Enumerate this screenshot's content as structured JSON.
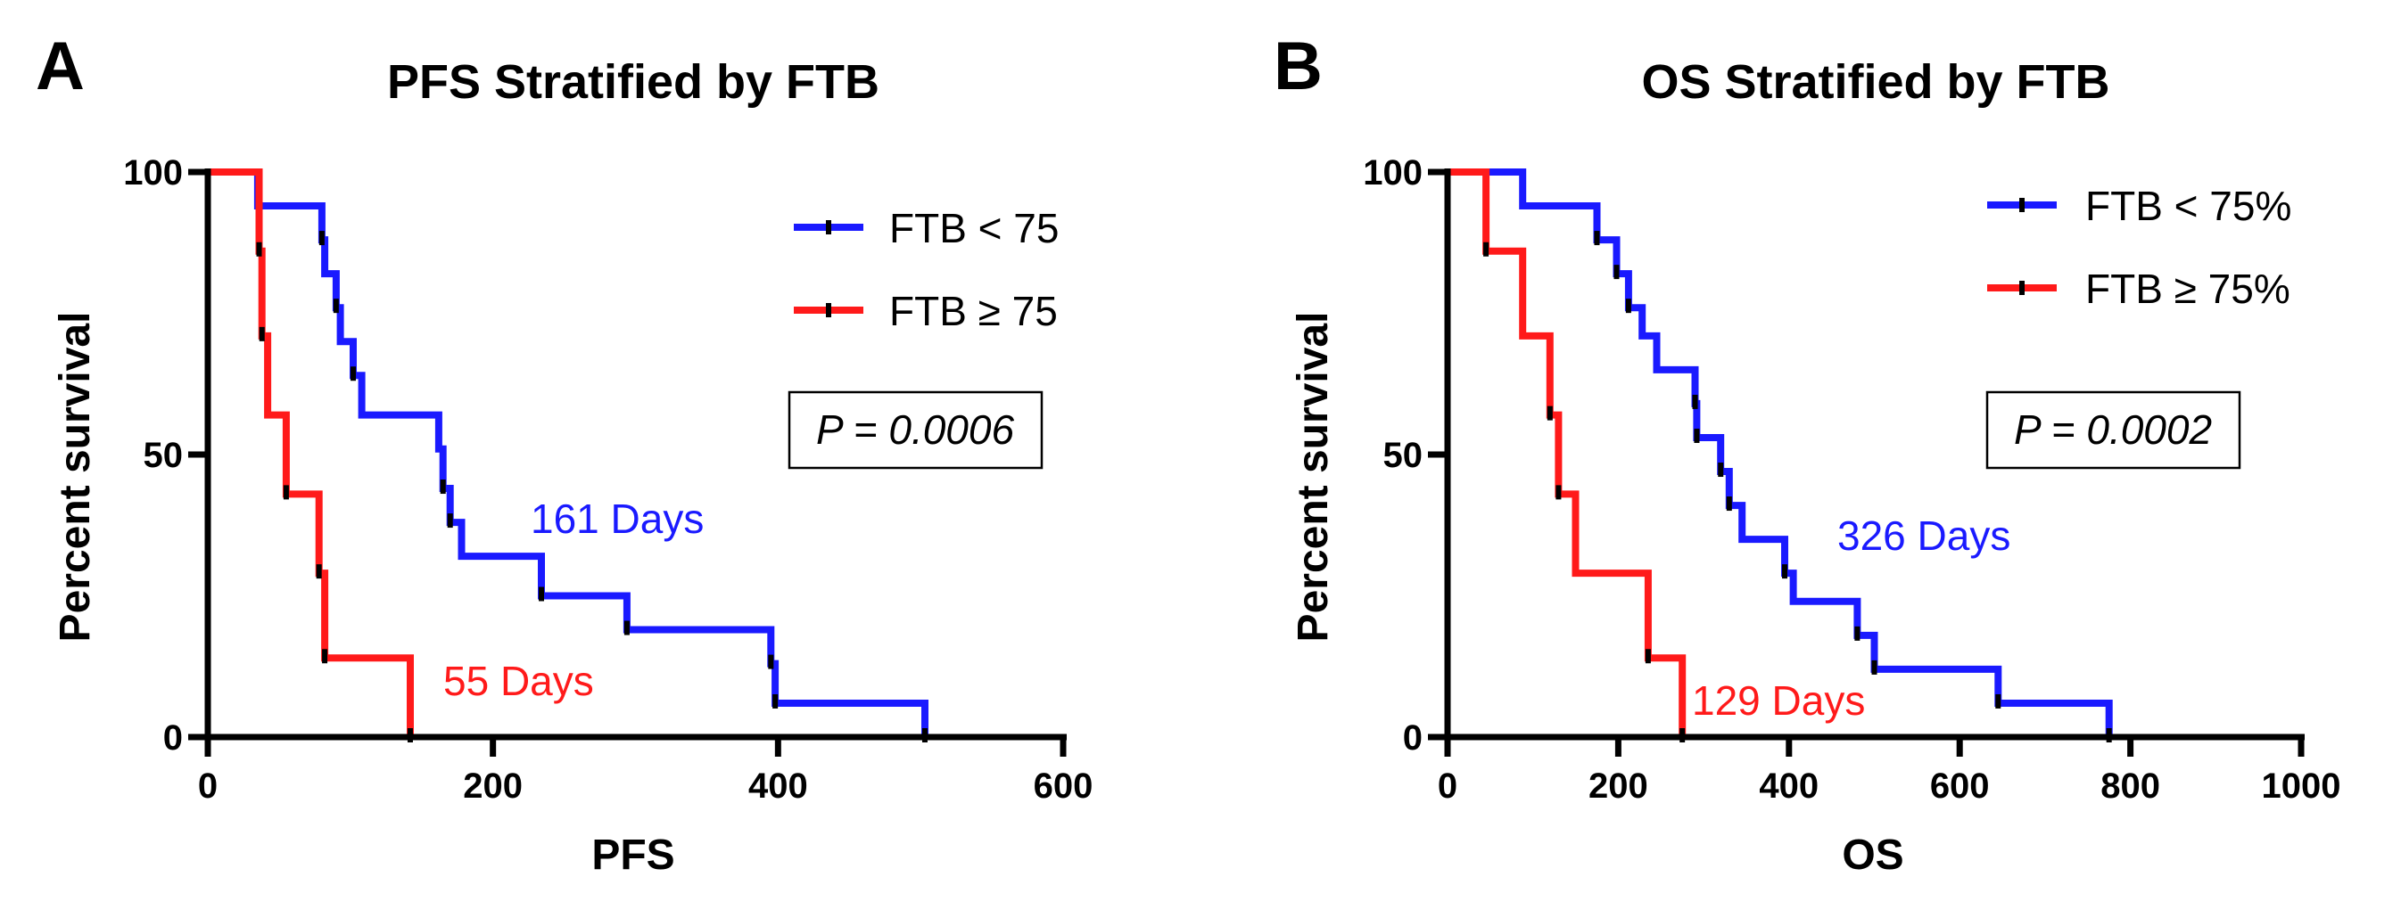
{
  "chart_data": [
    {
      "type": "line",
      "subtype": "kaplan-meier",
      "panel_letter": "A",
      "title": "PFS Stratified by FTB",
      "xlabel": "PFS",
      "ylabel": "Percent survival",
      "xlim": [
        0,
        600
      ],
      "ylim": [
        0,
        100
      ],
      "xticks": [
        "0",
        "200",
        "400",
        "600"
      ],
      "yticks": [
        "0",
        "50",
        "100"
      ],
      "pvalue_text": "P = 0.0006",
      "legend_position": "top-right",
      "series": [
        {
          "name": "FTB < 75",
          "color": "#1a1aff",
          "median_label": "161 Days",
          "steps": [
            [
              0,
              100
            ],
            [
              35,
              100
            ],
            [
              35,
              94
            ],
            [
              80,
              94
            ],
            [
              80,
              88
            ],
            [
              82,
              88
            ],
            [
              82,
              82
            ],
            [
              90,
              82
            ],
            [
              90,
              76
            ],
            [
              93,
              76
            ],
            [
              93,
              70
            ],
            [
              102,
              70
            ],
            [
              102,
              64
            ],
            [
              108,
              64
            ],
            [
              108,
              57
            ],
            [
              162,
              57
            ],
            [
              162,
              51
            ],
            [
              165,
              51
            ],
            [
              165,
              44
            ],
            [
              170,
              44
            ],
            [
              170,
              38
            ],
            [
              178,
              38
            ],
            [
              178,
              32
            ],
            [
              234,
              32
            ],
            [
              234,
              25
            ],
            [
              294,
              25
            ],
            [
              294,
              19
            ],
            [
              395,
              19
            ],
            [
              395,
              13
            ],
            [
              398,
              13
            ],
            [
              398,
              6
            ],
            [
              503,
              6
            ],
            [
              503,
              0
            ]
          ],
          "censor_x": [
            80,
            90,
            102,
            165,
            170,
            234,
            294,
            395,
            398,
            503
          ]
        },
        {
          "name": "FTB ≥ 75",
          "color": "#ff1a1a",
          "median_label": "55 Days",
          "steps": [
            [
              0,
              100
            ],
            [
              36,
              100
            ],
            [
              36,
              86
            ],
            [
              38,
              86
            ],
            [
              38,
              71
            ],
            [
              42,
              71
            ],
            [
              42,
              57
            ],
            [
              55,
              57
            ],
            [
              55,
              43
            ],
            [
              78,
              43
            ],
            [
              78,
              29
            ],
            [
              82,
              29
            ],
            [
              82,
              14
            ],
            [
              142,
              14
            ],
            [
              142,
              0
            ]
          ],
          "censor_x": [
            36,
            38,
            55,
            78,
            82,
            142
          ]
        }
      ]
    },
    {
      "type": "line",
      "subtype": "kaplan-meier",
      "panel_letter": "B",
      "title": "OS Stratified by FTB",
      "xlabel": "OS",
      "ylabel": "Percent survival",
      "xlim": [
        0,
        1000
      ],
      "ylim": [
        0,
        100
      ],
      "xticks": [
        "0",
        "200",
        "400",
        "600",
        "800",
        "1000"
      ],
      "yticks": [
        "0",
        "50",
        "100"
      ],
      "pvalue_text": "P = 0.0002",
      "legend_position": "top-right",
      "series": [
        {
          "name": "FTB < 75%",
          "color": "#1a1aff",
          "median_label": "326 Days",
          "steps": [
            [
              0,
              100
            ],
            [
              88,
              100
            ],
            [
              88,
              94
            ],
            [
              175,
              94
            ],
            [
              175,
              88
            ],
            [
              198,
              88
            ],
            [
              198,
              82
            ],
            [
              212,
              82
            ],
            [
              212,
              76
            ],
            [
              228,
              76
            ],
            [
              228,
              71
            ],
            [
              245,
              71
            ],
            [
              245,
              65
            ],
            [
              290,
              65
            ],
            [
              290,
              59
            ],
            [
              292,
              59
            ],
            [
              292,
              53
            ],
            [
              320,
              53
            ],
            [
              320,
              47
            ],
            [
              330,
              47
            ],
            [
              330,
              41
            ],
            [
              345,
              41
            ],
            [
              345,
              35
            ],
            [
              395,
              35
            ],
            [
              395,
              29
            ],
            [
              405,
              29
            ],
            [
              405,
              24
            ],
            [
              480,
              24
            ],
            [
              480,
              18
            ],
            [
              500,
              18
            ],
            [
              500,
              12
            ],
            [
              645,
              12
            ],
            [
              645,
              6
            ],
            [
              775,
              6
            ],
            [
              775,
              0
            ]
          ],
          "censor_x": [
            175,
            198,
            212,
            290,
            292,
            320,
            330,
            395,
            480,
            500,
            645,
            775
          ]
        },
        {
          "name": "FTB ≥ 75%",
          "color": "#ff1a1a",
          "median_label": "129 Days",
          "steps": [
            [
              0,
              100
            ],
            [
              45,
              100
            ],
            [
              45,
              86
            ],
            [
              88,
              86
            ],
            [
              88,
              71
            ],
            [
              120,
              71
            ],
            [
              120,
              57
            ],
            [
              130,
              57
            ],
            [
              130,
              43
            ],
            [
              150,
              43
            ],
            [
              150,
              29
            ],
            [
              235,
              29
            ],
            [
              235,
              14
            ],
            [
              275,
              14
            ],
            [
              275,
              0
            ]
          ],
          "censor_x": [
            45,
            120,
            130,
            235,
            275
          ]
        }
      ]
    }
  ]
}
